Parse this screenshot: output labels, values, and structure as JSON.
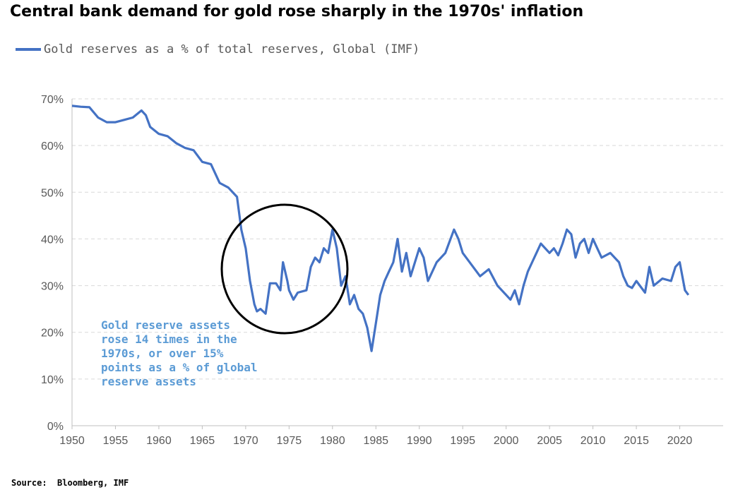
{
  "title": "Central bank demand for gold rose sharply in the 1970s' inflation",
  "legend": {
    "label": "Gold reserves as a % of total reserves, Global (IMF)",
    "color": "#4472C4"
  },
  "source": "Source:  Bloomberg, IMF",
  "annotation": {
    "lines": [
      "Gold reserve assets",
      "rose 14 times in the",
      "1970s, or over 15%",
      "points as a % of global",
      "reserve assets"
    ],
    "color": "#5B9BD5"
  },
  "chart_data": {
    "type": "line",
    "xlim": [
      1950,
      2025
    ],
    "ylim": [
      0,
      70
    ],
    "x_ticks": [
      "1950",
      "1955",
      "1960",
      "1965",
      "1970",
      "1975",
      "1980",
      "1985",
      "1990",
      "1995",
      "2000",
      "2005",
      "2010",
      "2015",
      "2020"
    ],
    "y_ticks": [
      "0%",
      "10%",
      "20%",
      "30%",
      "40%",
      "50%",
      "60%",
      "70%"
    ],
    "grid": "horizontal dashed",
    "series": [
      {
        "name": "Gold reserves as a % of total reserves, Global (IMF)",
        "color": "#4472C4",
        "x": [
          1950,
          1951,
          1952,
          1953,
          1954,
          1955,
          1956,
          1957,
          1958,
          1958.5,
          1959,
          1960,
          1961,
          1962,
          1963,
          1964,
          1965,
          1966,
          1967,
          1968,
          1969,
          1969.5,
          1970,
          1970.5,
          1971,
          1971.3,
          1971.7,
          1972,
          1972.3,
          1972.8,
          1973,
          1973.5,
          1974,
          1974.3,
          1974.8,
          1975,
          1975.5,
          1976,
          1977,
          1977.5,
          1978,
          1978.5,
          1979,
          1979.5,
          1980,
          1980.5,
          1981,
          1981.5,
          1982,
          1982.5,
          1983,
          1983.5,
          1984,
          1984.5,
          1985,
          1985.5,
          1986,
          1986.5,
          1987,
          1987.5,
          1988,
          1988.5,
          1989,
          1990,
          1990.5,
          1991,
          1992,
          1993,
          1994,
          1994.5,
          1995,
          1996,
          1997,
          1998,
          1999,
          2000,
          2000.5,
          2001,
          2001.5,
          2002,
          2002.5,
          2003,
          2004,
          2005,
          2005.5,
          2006,
          2006.5,
          2007,
          2007.5,
          2008,
          2008.5,
          2009,
          2009.5,
          2010,
          2010.5,
          2011,
          2012,
          2013,
          2013.5,
          2014,
          2014.5,
          2015,
          2016,
          2016.5,
          2017,
          2018,
          2019,
          2019.5,
          2020,
          2020.3,
          2020.6,
          2021
        ],
        "values": [
          68.5,
          68.3,
          68.2,
          66,
          65,
          65,
          65.5,
          66,
          67.5,
          66.5,
          64,
          62.5,
          62,
          60.5,
          59.5,
          59,
          56.5,
          56,
          52,
          51,
          49,
          42,
          38,
          31,
          26,
          24.5,
          25,
          24.5,
          24,
          30.5,
          30.5,
          30.5,
          29,
          35,
          31,
          29,
          27,
          28.5,
          29,
          34,
          36,
          35,
          38,
          37,
          42,
          38,
          30,
          32,
          26,
          28,
          25,
          24,
          21,
          16,
          22,
          28,
          31,
          33,
          35,
          40,
          33,
          37,
          32,
          38,
          36,
          31,
          35,
          37,
          42,
          40,
          37,
          34.5,
          32,
          33.5,
          30,
          28,
          27,
          29,
          26,
          30,
          33,
          35,
          39,
          37,
          38,
          36.5,
          39,
          42,
          41,
          36,
          39,
          40,
          37,
          40,
          38,
          36,
          37,
          35,
          32,
          30,
          29.5,
          31,
          28.5,
          34,
          30,
          31.5,
          31,
          34,
          35,
          32,
          29,
          28
        ]
      }
    ]
  }
}
